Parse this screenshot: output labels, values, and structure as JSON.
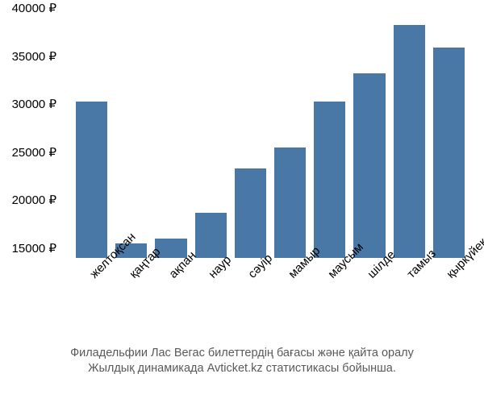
{
  "chart": {
    "type": "bar",
    "bar_color": "#4a78a6",
    "background_color": "#ffffff",
    "y_axis": {
      "min": 14000,
      "max": 40000,
      "tick_step": 5000,
      "tick_start": 15000,
      "currency_symbol": "₽",
      "label_fontsize": 15,
      "label_color": "#000000"
    },
    "x_axis": {
      "label_fontsize": 15,
      "label_color": "#000000",
      "rotation_deg": -45
    },
    "categories": [
      "желтоқсан",
      "қаңтар",
      "ақпан",
      "наур",
      "сәуір",
      "мамыр",
      "маусым",
      "шілде",
      "тамыз",
      "қыркүйек"
    ],
    "values": [
      30300,
      15500,
      16000,
      18700,
      23300,
      25500,
      30300,
      33200,
      38200,
      35900
    ],
    "bar_gap_ratio": 0.22
  },
  "caption": {
    "line1": "Филадельфии Лас Вегас билеттердің бағасы және қайта оралу",
    "line2": "Жылдық динамикада Avticket.kz статистикасы бойынша.",
    "fontsize": 14.5,
    "color": "#595959"
  }
}
